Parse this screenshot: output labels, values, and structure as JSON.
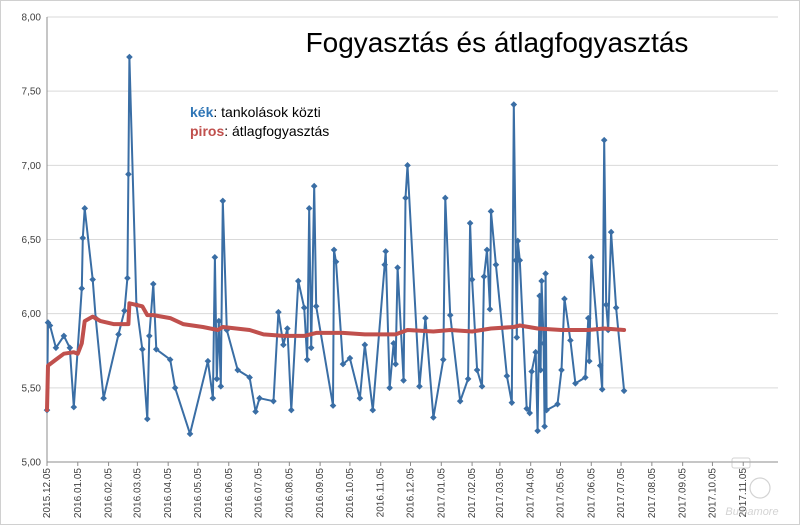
{
  "chart_data": {
    "type": "line",
    "title": "Fogyasztás és átlagfogyasztás",
    "legend": [
      {
        "key": "kék",
        "text": ": tankolások közti",
        "color": "#2e75b6"
      },
      {
        "key": "piros",
        "text": ": átlagfogyasztás",
        "color": "#c0504d"
      }
    ],
    "legend_position": "top-left",
    "xlabel": "",
    "ylabel": "",
    "ylim": [
      5.0,
      8.0
    ],
    "y_ticks": [
      "5,00",
      "5,50",
      "6,00",
      "6,50",
      "7,00",
      "7,50",
      "8,00"
    ],
    "y_tick_values": [
      5.0,
      5.5,
      6.0,
      6.5,
      7.0,
      7.5,
      8.0
    ],
    "x_ticks": [
      "2015.12.05",
      "2016.01.05",
      "2016.02.05",
      "2016.03.05",
      "2016.04.05",
      "2016.05.05",
      "2016.06.05",
      "2016.07.05",
      "2016.08.05",
      "2016.09.05",
      "2016.10.05",
      "2016.11.05",
      "2016.12.05",
      "2017.01.05",
      "2017.02.05",
      "2017.03.05",
      "2017.04.05",
      "2017.05.05",
      "2017.06.05",
      "2017.07.05",
      "2017.08.05",
      "2017.09.05",
      "2017.10.05",
      "2017.11.05"
    ],
    "xlim": [
      "2015-12-05",
      "2017-12-10"
    ],
    "grid": {
      "horizontal": true,
      "vertical": false
    },
    "series": [
      {
        "name": "tankolások közti",
        "color": "#3a6ea5",
        "markers": true,
        "points": [
          [
            "2015-12-05",
            5.35
          ],
          [
            "2015-12-06",
            5.94
          ],
          [
            "2015-12-08",
            5.92
          ],
          [
            "2015-12-14",
            5.77
          ],
          [
            "2015-12-22",
            5.85
          ],
          [
            "2015-12-28",
            5.77
          ],
          [
            "2016-01-01",
            5.37
          ],
          [
            "2016-01-09",
            6.17
          ],
          [
            "2016-01-10",
            6.51
          ],
          [
            "2016-01-12",
            6.71
          ],
          [
            "2016-01-20",
            6.23
          ],
          [
            "2016-01-23",
            5.97
          ],
          [
            "2016-01-31",
            5.43
          ],
          [
            "2016-02-15",
            5.86
          ],
          [
            "2016-02-21",
            6.02
          ],
          [
            "2016-02-24",
            6.24
          ],
          [
            "2016-02-25",
            6.94
          ],
          [
            "2016-02-26",
            7.73
          ],
          [
            "2016-03-04",
            6.06
          ],
          [
            "2016-03-10",
            5.76
          ],
          [
            "2016-03-15",
            5.29
          ],
          [
            "2016-03-17",
            5.85
          ],
          [
            "2016-03-21",
            6.2
          ],
          [
            "2016-03-24",
            5.76
          ],
          [
            "2016-04-07",
            5.69
          ],
          [
            "2016-04-12",
            5.5
          ],
          [
            "2016-04-27",
            5.19
          ],
          [
            "2016-05-15",
            5.68
          ],
          [
            "2016-05-20",
            5.43
          ],
          [
            "2016-05-22",
            6.38
          ],
          [
            "2016-05-24",
            5.56
          ],
          [
            "2016-05-26",
            5.95
          ],
          [
            "2016-05-28",
            5.51
          ],
          [
            "2016-05-30",
            6.76
          ],
          [
            "2016-06-03",
            5.89
          ],
          [
            "2016-06-14",
            5.62
          ],
          [
            "2016-06-26",
            5.57
          ],
          [
            "2016-07-02",
            5.34
          ],
          [
            "2016-07-06",
            5.43
          ],
          [
            "2016-07-20",
            5.41
          ],
          [
            "2016-07-25",
            6.01
          ],
          [
            "2016-07-30",
            5.79
          ],
          [
            "2016-08-03",
            5.9
          ],
          [
            "2016-08-07",
            5.35
          ],
          [
            "2016-08-14",
            6.22
          ],
          [
            "2016-08-20",
            6.04
          ],
          [
            "2016-08-23",
            5.69
          ],
          [
            "2016-08-25",
            6.71
          ],
          [
            "2016-08-27",
            5.77
          ],
          [
            "2016-08-30",
            6.86
          ],
          [
            "2016-09-01",
            6.05
          ],
          [
            "2016-09-18",
            5.38
          ],
          [
            "2016-09-19",
            6.43
          ],
          [
            "2016-09-21",
            6.35
          ],
          [
            "2016-09-28",
            5.66
          ],
          [
            "2016-10-05",
            5.7
          ],
          [
            "2016-10-15",
            5.43
          ],
          [
            "2016-10-20",
            5.79
          ],
          [
            "2016-10-28",
            5.35
          ],
          [
            "2016-11-09",
            6.33
          ],
          [
            "2016-11-10",
            6.42
          ],
          [
            "2016-11-14",
            5.5
          ],
          [
            "2016-11-18",
            5.8
          ],
          [
            "2016-11-20",
            5.66
          ],
          [
            "2016-11-22",
            6.31
          ],
          [
            "2016-11-28",
            5.55
          ],
          [
            "2016-11-30",
            6.78
          ],
          [
            "2016-12-02",
            7.0
          ],
          [
            "2016-12-14",
            5.51
          ],
          [
            "2016-12-20",
            5.97
          ],
          [
            "2016-12-28",
            5.3
          ],
          [
            "2017-01-07",
            5.69
          ],
          [
            "2017-01-09",
            6.78
          ],
          [
            "2017-01-14",
            5.99
          ],
          [
            "2017-01-24",
            5.41
          ],
          [
            "2017-02-01",
            5.56
          ],
          [
            "2017-02-03",
            6.61
          ],
          [
            "2017-02-05",
            6.23
          ],
          [
            "2017-02-10",
            5.62
          ],
          [
            "2017-02-15",
            5.51
          ],
          [
            "2017-02-17",
            6.25
          ],
          [
            "2017-02-20",
            6.43
          ],
          [
            "2017-02-23",
            6.03
          ],
          [
            "2017-02-24",
            6.69
          ],
          [
            "2017-03-01",
            6.33
          ],
          [
            "2017-03-12",
            5.58
          ],
          [
            "2017-03-17",
            5.4
          ],
          [
            "2017-03-19",
            7.41
          ],
          [
            "2017-03-21",
            6.36
          ],
          [
            "2017-03-22",
            5.84
          ],
          [
            "2017-03-23",
            6.49
          ],
          [
            "2017-03-25",
            6.36
          ],
          [
            "2017-04-01",
            5.36
          ],
          [
            "2017-04-04",
            5.33
          ],
          [
            "2017-04-06",
            5.61
          ],
          [
            "2017-04-10",
            5.74
          ],
          [
            "2017-04-12",
            5.21
          ],
          [
            "2017-04-14",
            6.12
          ],
          [
            "2017-04-15",
            5.62
          ],
          [
            "2017-04-16",
            6.22
          ],
          [
            "2017-04-18",
            5.8
          ],
          [
            "2017-04-19",
            5.24
          ],
          [
            "2017-04-20",
            6.27
          ],
          [
            "2017-04-21",
            5.35
          ],
          [
            "2017-05-02",
            5.39
          ],
          [
            "2017-05-06",
            5.62
          ],
          [
            "2017-05-09",
            6.1
          ],
          [
            "2017-05-15",
            5.82
          ],
          [
            "2017-05-20",
            5.53
          ],
          [
            "2017-05-30",
            5.57
          ],
          [
            "2017-06-02",
            5.97
          ],
          [
            "2017-06-03",
            5.68
          ],
          [
            "2017-06-05",
            6.38
          ],
          [
            "2017-06-14",
            5.65
          ],
          [
            "2017-06-16",
            5.49
          ],
          [
            "2017-06-18",
            7.17
          ],
          [
            "2017-06-20",
            6.06
          ],
          [
            "2017-06-22",
            5.89
          ],
          [
            "2017-06-25",
            6.55
          ],
          [
            "2017-06-30",
            6.04
          ],
          [
            "2017-07-08",
            5.48
          ]
        ]
      },
      {
        "name": "átlagfogyasztás",
        "color": "#c0504d",
        "markers": false,
        "points": [
          [
            "2015-12-05",
            5.35
          ],
          [
            "2015-12-06",
            5.65
          ],
          [
            "2015-12-14",
            5.69
          ],
          [
            "2015-12-22",
            5.73
          ],
          [
            "2016-01-01",
            5.74
          ],
          [
            "2016-01-05",
            5.73
          ],
          [
            "2016-01-09",
            5.8
          ],
          [
            "2016-01-12",
            5.95
          ],
          [
            "2016-01-20",
            5.98
          ],
          [
            "2016-01-28",
            5.95
          ],
          [
            "2016-02-10",
            5.93
          ],
          [
            "2016-02-25",
            5.93
          ],
          [
            "2016-02-26",
            6.07
          ],
          [
            "2016-03-10",
            6.05
          ],
          [
            "2016-03-15",
            5.99
          ],
          [
            "2016-03-21",
            5.99
          ],
          [
            "2016-04-07",
            5.97
          ],
          [
            "2016-04-20",
            5.93
          ],
          [
            "2016-05-10",
            5.91
          ],
          [
            "2016-05-25",
            5.89
          ],
          [
            "2016-05-30",
            5.91
          ],
          [
            "2016-06-26",
            5.89
          ],
          [
            "2016-07-10",
            5.86
          ],
          [
            "2016-07-30",
            5.85
          ],
          [
            "2016-08-20",
            5.85
          ],
          [
            "2016-09-01",
            5.87
          ],
          [
            "2016-09-28",
            5.87
          ],
          [
            "2016-10-20",
            5.86
          ],
          [
            "2016-11-05",
            5.86
          ],
          [
            "2016-11-20",
            5.86
          ],
          [
            "2016-12-02",
            5.89
          ],
          [
            "2016-12-28",
            5.88
          ],
          [
            "2017-01-14",
            5.89
          ],
          [
            "2017-02-05",
            5.88
          ],
          [
            "2017-02-24",
            5.9
          ],
          [
            "2017-03-19",
            5.91
          ],
          [
            "2017-03-25",
            5.92
          ],
          [
            "2017-04-12",
            5.9
          ],
          [
            "2017-05-06",
            5.89
          ],
          [
            "2017-06-02",
            5.89
          ],
          [
            "2017-06-18",
            5.9
          ],
          [
            "2017-07-08",
            5.89
          ]
        ]
      }
    ]
  },
  "watermark": "Bulbamore"
}
